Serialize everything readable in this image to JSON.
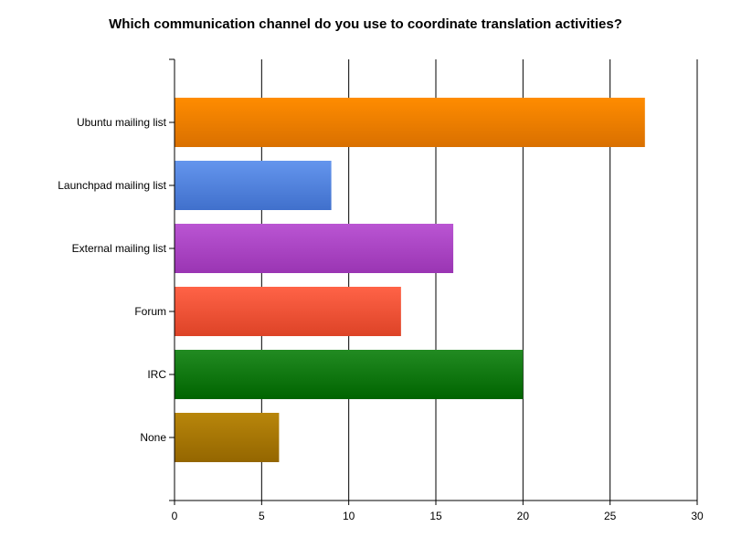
{
  "chart_data": {
    "type": "bar",
    "orientation": "horizontal",
    "title": "Which communication channel do you use to coordinate translation activities?",
    "xlabel": "",
    "ylabel": "",
    "categories": [
      "Ubuntu mailing list",
      "Launchpad mailing list",
      "External mailing list",
      "Forum",
      "IRC",
      "None"
    ],
    "values": [
      27,
      9,
      16,
      13,
      20,
      6
    ],
    "xlim": [
      0,
      30
    ],
    "x_ticks": [
      0,
      5,
      10,
      15,
      20,
      25,
      30
    ],
    "grid": "vertical",
    "legend": "none",
    "colors": [
      [
        "#ff8c00",
        "#d97000"
      ],
      [
        "#6495ed",
        "#4070cc"
      ],
      [
        "#ba55d3",
        "#9a35b3"
      ],
      [
        "#ff6347",
        "#dd4327"
      ],
      [
        "#228b22",
        "#006400"
      ],
      [
        "#b8860b",
        "#946600"
      ]
    ]
  }
}
